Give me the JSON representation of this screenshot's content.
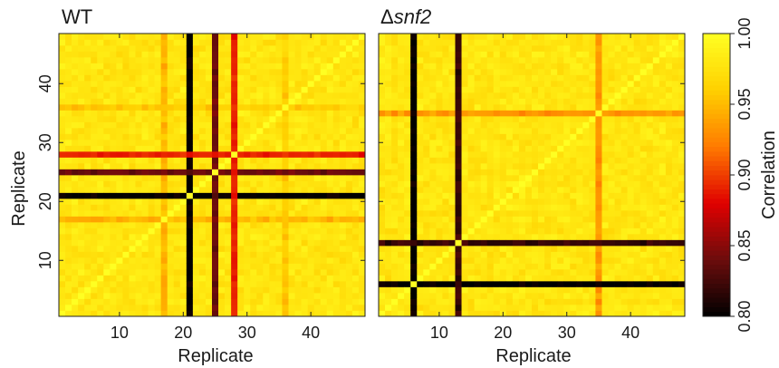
{
  "figure": {
    "colorbar": {
      "label": "Correlation",
      "ticks": [
        "0.80",
        "0.85",
        "0.90",
        "0.95",
        "1.00"
      ],
      "tick_values": [
        0.8,
        0.85,
        0.9,
        0.95,
        1.0
      ],
      "range": [
        0.8,
        1.0
      ],
      "colormap": [
        "#000000",
        "#6b0d0d",
        "#e00000",
        "#ff7a00",
        "#ffd000",
        "#ffff22"
      ]
    }
  },
  "chart_data": [
    {
      "type": "heatmap",
      "title_prefix": "WT",
      "title_suffix": "",
      "xlabel": "Replicate",
      "ylabel": "Replicate",
      "n": 48,
      "x_ticks": [
        10,
        20,
        30,
        40
      ],
      "y_ticks": [
        10,
        20,
        30,
        40
      ],
      "x_tick_labels": [
        "10",
        "20",
        "30",
        "40"
      ],
      "y_tick_labels": [
        "10",
        "20",
        "30",
        "40"
      ],
      "outlier_replicates": [
        {
          "replicate": 21,
          "correlation": 0.8
        },
        {
          "replicate": 25,
          "correlation": 0.84
        },
        {
          "replicate": 28,
          "correlation": 0.89
        }
      ],
      "mild_replicates": [
        {
          "replicate": 17,
          "correlation": 0.955
        },
        {
          "replicate": 36,
          "correlation": 0.965
        }
      ],
      "baseline_correlation": 0.985
    },
    {
      "type": "heatmap",
      "title_prefix": "Δ",
      "title_suffix": "snf2",
      "xlabel": "Replicate",
      "ylabel": "",
      "n": 48,
      "x_ticks": [
        10,
        20,
        30,
        40
      ],
      "y_ticks": [
        10,
        20,
        30,
        40
      ],
      "x_tick_labels": [
        "10",
        "20",
        "30",
        "40"
      ],
      "y_tick_labels": [],
      "outlier_replicates": [
        {
          "replicate": 6,
          "correlation": 0.8
        },
        {
          "replicate": 13,
          "correlation": 0.82
        }
      ],
      "mild_replicates": [
        {
          "replicate": 35,
          "correlation": 0.94
        }
      ],
      "baseline_correlation": 0.985
    }
  ]
}
